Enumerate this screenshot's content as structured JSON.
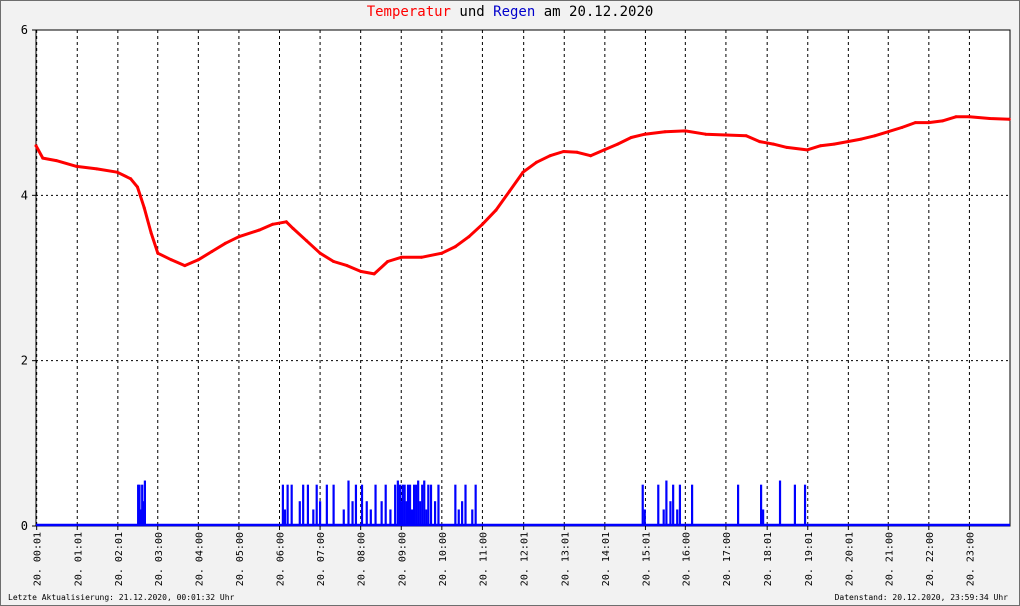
{
  "title": {
    "part1": "Temperatur",
    "part2": " und ",
    "part3": "Regen",
    "part4": " am 20.12.2020"
  },
  "footer": {
    "left": "Letzte Aktualisierung: 21.12.2020, 00:01:32 Uhr",
    "right": "Datenstand: 20.12.2020, 23:59:34 Uhr"
  },
  "colors": {
    "temperature": "#ff0000",
    "rain": "#0000ff",
    "grid": "#000000",
    "background": "#ffffff"
  },
  "chart_data": {
    "type": "line",
    "grid": true,
    "x": {
      "range": [
        "20.12.2020 00:00",
        "21.12.2020 00:00"
      ],
      "tick_labels": [
        "20. 00:01",
        "20. 01:01",
        "20. 02:01",
        "20. 03:00",
        "20. 04:00",
        "20. 05:00",
        "20. 06:00",
        "20. 07:00",
        "20. 08:00",
        "20. 09:00",
        "20. 10:00",
        "20. 11:00",
        "20. 12:01",
        "20. 13:01",
        "20. 14:01",
        "20. 15:01",
        "20. 16:00",
        "20. 17:00",
        "20. 18:01",
        "20. 19:01",
        "20. 20:01",
        "20. 21:00",
        "20. 22:00",
        "20. 23:00"
      ]
    },
    "y": {
      "range": [
        0,
        6
      ],
      "ticks": [
        0,
        2,
        4,
        6
      ]
    },
    "series": [
      {
        "name": "Temperatur",
        "style": "line",
        "points": [
          [
            "00:00",
            4.6
          ],
          [
            "00:10",
            4.45
          ],
          [
            "00:30",
            4.42
          ],
          [
            "01:00",
            4.35
          ],
          [
            "01:30",
            4.32
          ],
          [
            "02:00",
            4.28
          ],
          [
            "02:20",
            4.2
          ],
          [
            "02:30",
            4.1
          ],
          [
            "02:40",
            3.85
          ],
          [
            "02:50",
            3.55
          ],
          [
            "03:00",
            3.3
          ],
          [
            "03:20",
            3.22
          ],
          [
            "03:40",
            3.15
          ],
          [
            "04:00",
            3.22
          ],
          [
            "04:20",
            3.32
          ],
          [
            "04:40",
            3.42
          ],
          [
            "05:00",
            3.5
          ],
          [
            "05:30",
            3.58
          ],
          [
            "05:50",
            3.65
          ],
          [
            "06:10",
            3.68
          ],
          [
            "06:20",
            3.6
          ],
          [
            "06:40",
            3.45
          ],
          [
            "07:00",
            3.3
          ],
          [
            "07:20",
            3.2
          ],
          [
            "07:40",
            3.15
          ],
          [
            "08:00",
            3.08
          ],
          [
            "08:20",
            3.05
          ],
          [
            "08:40",
            3.2
          ],
          [
            "09:00",
            3.25
          ],
          [
            "09:30",
            3.25
          ],
          [
            "10:00",
            3.3
          ],
          [
            "10:20",
            3.38
          ],
          [
            "10:40",
            3.5
          ],
          [
            "11:00",
            3.65
          ],
          [
            "11:20",
            3.82
          ],
          [
            "11:40",
            4.05
          ],
          [
            "12:00",
            4.28
          ],
          [
            "12:20",
            4.4
          ],
          [
            "12:40",
            4.48
          ],
          [
            "13:00",
            4.53
          ],
          [
            "13:20",
            4.52
          ],
          [
            "13:40",
            4.48
          ],
          [
            "14:00",
            4.55
          ],
          [
            "14:20",
            4.62
          ],
          [
            "14:40",
            4.7
          ],
          [
            "15:00",
            4.74
          ],
          [
            "15:30",
            4.77
          ],
          [
            "16:00",
            4.78
          ],
          [
            "16:30",
            4.74
          ],
          [
            "17:00",
            4.73
          ],
          [
            "17:30",
            4.72
          ],
          [
            "17:50",
            4.65
          ],
          [
            "18:10",
            4.62
          ],
          [
            "18:30",
            4.58
          ],
          [
            "19:00",
            4.55
          ],
          [
            "19:20",
            4.6
          ],
          [
            "19:40",
            4.62
          ],
          [
            "20:00",
            4.65
          ],
          [
            "20:20",
            4.68
          ],
          [
            "20:40",
            4.72
          ],
          [
            "21:00",
            4.77
          ],
          [
            "21:20",
            4.82
          ],
          [
            "21:40",
            4.88
          ],
          [
            "22:00",
            4.88
          ],
          [
            "22:20",
            4.9
          ],
          [
            "22:40",
            4.95
          ],
          [
            "23:00",
            4.95
          ],
          [
            "23:30",
            4.93
          ],
          [
            "23:59",
            4.92
          ]
        ]
      },
      {
        "name": "Regen",
        "style": "impulse",
        "points": [
          [
            "02:31",
            0.5
          ],
          [
            "02:33",
            0.5
          ],
          [
            "02:35",
            0.2
          ],
          [
            "02:37",
            0.5
          ],
          [
            "02:39",
            0.3
          ],
          [
            "02:41",
            0.55
          ],
          [
            "06:05",
            0.5
          ],
          [
            "06:08",
            0.2
          ],
          [
            "06:12",
            0.5
          ],
          [
            "06:18",
            0.5
          ],
          [
            "06:30",
            0.3
          ],
          [
            "06:35",
            0.5
          ],
          [
            "06:42",
            0.5
          ],
          [
            "06:50",
            0.2
          ],
          [
            "06:55",
            0.5
          ],
          [
            "07:00",
            0.3
          ],
          [
            "07:10",
            0.5
          ],
          [
            "07:20",
            0.5
          ],
          [
            "07:35",
            0.2
          ],
          [
            "07:42",
            0.55
          ],
          [
            "07:48",
            0.3
          ],
          [
            "07:53",
            0.5
          ],
          [
            "08:02",
            0.5
          ],
          [
            "08:09",
            0.3
          ],
          [
            "08:15",
            0.2
          ],
          [
            "08:22",
            0.5
          ],
          [
            "08:31",
            0.3
          ],
          [
            "08:37",
            0.5
          ],
          [
            "08:44",
            0.2
          ],
          [
            "08:51",
            0.5
          ],
          [
            "08:55",
            0.55
          ],
          [
            "08:58",
            0.5
          ],
          [
            "09:00",
            0.3
          ],
          [
            "09:02",
            0.5
          ],
          [
            "09:05",
            0.5
          ],
          [
            "09:08",
            0.3
          ],
          [
            "09:10",
            0.5
          ],
          [
            "09:13",
            0.5
          ],
          [
            "09:16",
            0.2
          ],
          [
            "09:19",
            0.5
          ],
          [
            "09:22",
            0.5
          ],
          [
            "09:25",
            0.55
          ],
          [
            "09:28",
            0.3
          ],
          [
            "09:31",
            0.5
          ],
          [
            "09:34",
            0.55
          ],
          [
            "09:37",
            0.2
          ],
          [
            "09:40",
            0.5
          ],
          [
            "09:44",
            0.5
          ],
          [
            "09:50",
            0.3
          ],
          [
            "09:55",
            0.5
          ],
          [
            "10:20",
            0.5
          ],
          [
            "10:25",
            0.2
          ],
          [
            "10:30",
            0.3
          ],
          [
            "10:35",
            0.5
          ],
          [
            "10:45",
            0.2
          ],
          [
            "10:50",
            0.5
          ],
          [
            "14:57",
            0.5
          ],
          [
            "15:00",
            0.2
          ],
          [
            "15:20",
            0.5
          ],
          [
            "15:28",
            0.2
          ],
          [
            "15:32",
            0.55
          ],
          [
            "15:38",
            0.3
          ],
          [
            "15:42",
            0.5
          ],
          [
            "15:48",
            0.2
          ],
          [
            "15:52",
            0.5
          ],
          [
            "16:10",
            0.5
          ],
          [
            "17:18",
            0.5
          ],
          [
            "17:52",
            0.5
          ],
          [
            "17:55",
            0.2
          ],
          [
            "18:20",
            0.55
          ],
          [
            "18:42",
            0.5
          ],
          [
            "18:57",
            0.5
          ]
        ]
      }
    ]
  }
}
